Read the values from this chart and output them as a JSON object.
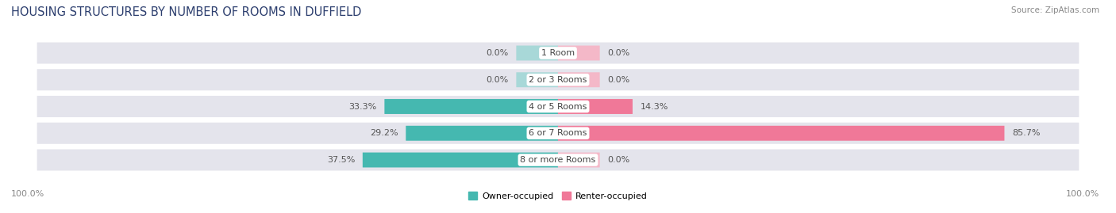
{
  "title": "HOUSING STRUCTURES BY NUMBER OF ROOMS IN DUFFIELD",
  "source": "Source: ZipAtlas.com",
  "categories": [
    "1 Room",
    "2 or 3 Rooms",
    "4 or 5 Rooms",
    "6 or 7 Rooms",
    "8 or more Rooms"
  ],
  "owner_values": [
    0.0,
    0.0,
    33.3,
    29.2,
    37.5
  ],
  "renter_values": [
    0.0,
    0.0,
    14.3,
    85.7,
    0.0
  ],
  "owner_color": "#45b8b0",
  "renter_color": "#f07898",
  "owner_color_light": "#a8d8d8",
  "renter_color_light": "#f4b8c8",
  "bar_bg_color": "#e4e4ec",
  "bar_height": 0.52,
  "legend_owner": "Owner-occupied",
  "legend_renter": "Renter-occupied",
  "figsize": [
    14.06,
    2.69
  ],
  "dpi": 100,
  "title_fontsize": 10.5,
  "label_fontsize": 8,
  "category_fontsize": 8,
  "legend_fontsize": 8,
  "source_fontsize": 7.5,
  "zero_bar_size": 8.0,
  "nonzero_min_bar": 4.0
}
